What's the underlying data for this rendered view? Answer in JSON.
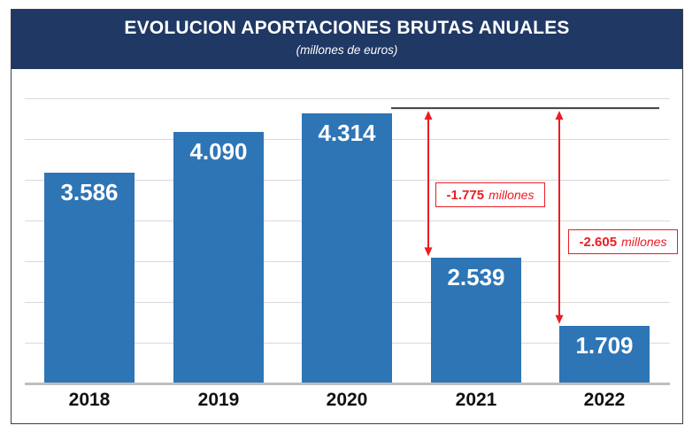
{
  "header": {
    "title": "EVOLUCION APORTACIONES BRUTAS ANUALES",
    "subtitle": "(millones de euros)"
  },
  "chart_data": {
    "type": "bar",
    "title": "EVOLUCION APORTACIONES BRUTAS ANUALES",
    "subtitle": "(millones de euros)",
    "categories": [
      "2018",
      "2019",
      "2020",
      "2021",
      "2022"
    ],
    "values": [
      3586,
      4090,
      4314,
      2539,
      1709
    ],
    "value_labels": [
      "3.586",
      "4.090",
      "4.314",
      "2.539",
      "1.709"
    ],
    "xlabel": "",
    "ylabel": "",
    "ylim": [
      1000,
      4600
    ],
    "gridlines": [
      1500,
      2000,
      2500,
      3000,
      3500,
      4000,
      4500
    ],
    "grid": "horizontal",
    "legend": "none",
    "bar_color": "#2e75b6",
    "header_color": "#1f3864",
    "annotation_color": "#ec1c24",
    "reference_line": {
      "at_value": 4314,
      "from_category": "2020",
      "color": "#3f3f3f"
    },
    "annotations": [
      {
        "value_label": "-1.775",
        "unit_label": "millones",
        "delta": -1775,
        "from_category": "2020",
        "to_category": "2021"
      },
      {
        "value_label": "-2.605",
        "unit_label": "millones",
        "delta": -2605,
        "from_category": "2020",
        "to_category": "2022"
      }
    ]
  }
}
